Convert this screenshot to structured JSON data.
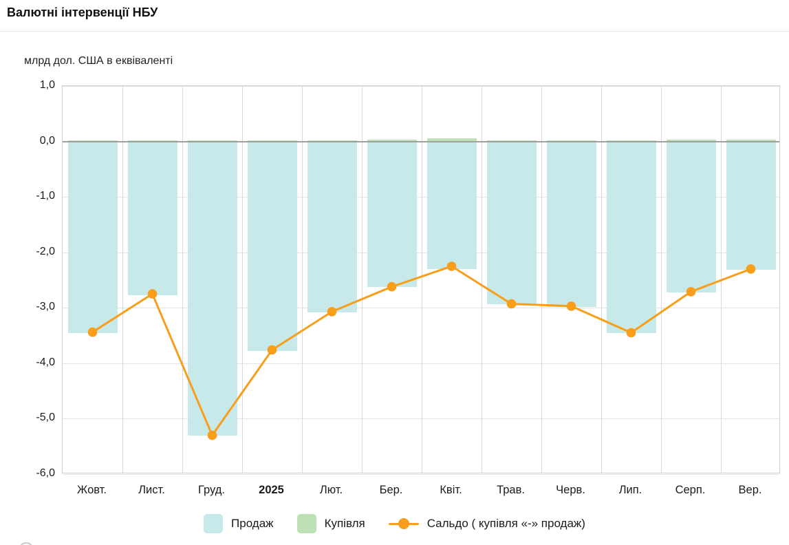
{
  "header": {
    "title": "Валютні інтервенції НБУ"
  },
  "chart_data": {
    "type": "bar+line",
    "title": "Валютні інтервенції НБУ",
    "unit_label": "млрд дол. США в еквіваленті",
    "categories": [
      "Жовт.",
      "Лист.",
      "Груд.",
      "2025",
      "Лют.",
      "Бер.",
      "Квіт.",
      "Трав.",
      "Черв.",
      "Лип.",
      "Серп.",
      "Вер."
    ],
    "bold_category": "2025",
    "series": [
      {
        "name": "Продаж",
        "type": "bar",
        "color": "#c7e9e9",
        "values": [
          -3.45,
          -2.77,
          -5.31,
          -3.78,
          -3.08,
          -2.63,
          -2.3,
          -2.94,
          -2.98,
          -3.46,
          -2.72,
          -2.31
        ]
      },
      {
        "name": "Купівля",
        "type": "bar",
        "color": "#bde0b4",
        "values": [
          0.01,
          0.01,
          0.01,
          0.01,
          0.01,
          0.02,
          0.05,
          0.01,
          0.01,
          0.01,
          0.02,
          0.02
        ]
      },
      {
        "name": "Сальдо ( купівля «-» продаж)",
        "type": "line",
        "color": "#f89e1b",
        "values": [
          -3.44,
          -2.75,
          -5.3,
          -3.76,
          -3.07,
          -2.62,
          -2.25,
          -2.93,
          -2.97,
          -3.45,
          -2.71,
          -2.3
        ]
      }
    ],
    "ylim": [
      -6,
      1
    ],
    "yticks": [
      {
        "label": "1,0",
        "value": 1
      },
      {
        "label": "0,0",
        "value": 0
      },
      {
        "label": "-1,0",
        "value": -1
      },
      {
        "label": "-2,0",
        "value": -2
      },
      {
        "label": "-3,0",
        "value": -3
      },
      {
        "label": "-4,0",
        "value": -4
      },
      {
        "label": "-5,0",
        "value": -5
      },
      {
        "label": "-6,0",
        "value": -6
      }
    ],
    "grid": true,
    "legend_position": "bottom"
  }
}
